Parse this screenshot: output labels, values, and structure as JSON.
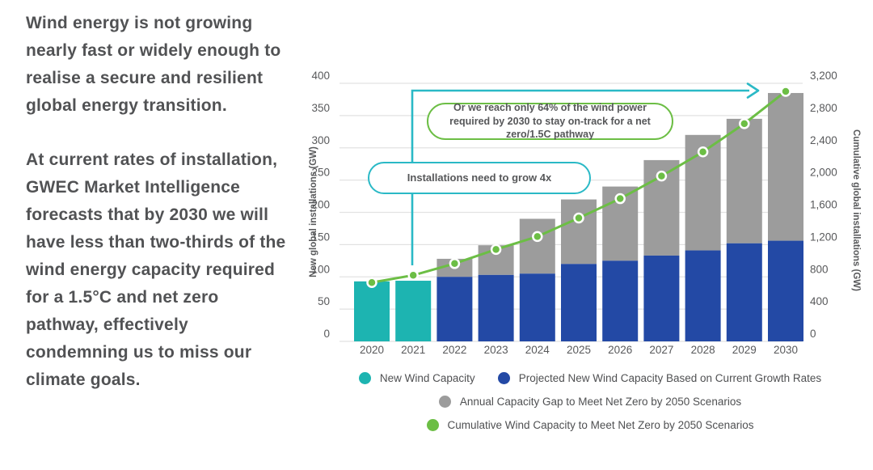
{
  "left_panel": {
    "paragraph1": "Wind energy is not growing nearly fast or widely enough to realise a secure and resilient global energy transition.",
    "paragraph2": "At current rates of installation, GWEC Market Intelligence forecasts that by 2030 we will have less than two-thirds of the wind energy capacity required for a 1.5°C and net zero pathway, effectively condemning us to miss our climate goals."
  },
  "chart": {
    "callouts": {
      "grow4x": "Installations need to grow 4x",
      "reach64": "Or we reach only 64% of the wind power required by 2030 to stay on-track for a net zero/1.5C pathway"
    },
    "legend": [
      {
        "label": "New Wind Capacity",
        "color": "#1db4b1"
      },
      {
        "label": "Projected New Wind Capacity Based on Current Growth Rates",
        "color": "#2349a5"
      },
      {
        "label": "Annual Capacity Gap to Meet Net Zero by 2050 Scenarios",
        "color": "#9c9c9c"
      },
      {
        "label": "Cumulative Wind Capacity to Meet Net Zero by 2050 Scenarios",
        "color": "#6cbe45"
      }
    ],
    "colors": {
      "teal_bar": "#1db4b1",
      "blue_bar": "#2349a5",
      "gray_bar": "#9c9c9c",
      "green_line": "#6cbe45",
      "teal_arrow": "#2ab9c6",
      "gridline": "#e2e2e2",
      "axis_text": "#58595b"
    }
  },
  "chart_data": {
    "type": "bar+line",
    "categories": [
      "2020",
      "2021",
      "2022",
      "2023",
      "2024",
      "2025",
      "2026",
      "2027",
      "2028",
      "2029",
      "2030"
    ],
    "series": [
      {
        "name": "New Wind Capacity",
        "type": "bar",
        "axis": "left",
        "color": "#1db4b1",
        "values": [
          93,
          94,
          null,
          null,
          null,
          null,
          null,
          null,
          null,
          null,
          null
        ]
      },
      {
        "name": "Projected New Wind Capacity Based on Current Growth Rates",
        "type": "bar",
        "axis": "left",
        "color": "#2349a5",
        "values": [
          null,
          null,
          100,
          103,
          105,
          120,
          125,
          133,
          141,
          152,
          156
        ]
      },
      {
        "name": "Annual Capacity Gap to Meet Net Zero by 2050 Scenarios",
        "type": "bar",
        "axis": "left",
        "stacked_on": "Projected New Wind Capacity Based on Current Growth Rates",
        "color": "#9c9c9c",
        "values": [
          null,
          null,
          28,
          46,
          85,
          100,
          115,
          148,
          179,
          193,
          229
        ]
      },
      {
        "name": "Cumulative Wind Capacity to Meet Net Zero by 2050 Scenarios",
        "type": "line",
        "axis": "right",
        "color": "#6cbe45",
        "values": [
          730,
          820,
          965,
          1140,
          1300,
          1530,
          1770,
          2050,
          2350,
          2700,
          3100
        ]
      }
    ],
    "left_axis": {
      "label": "New global installations (GW)",
      "min": 0,
      "max": 400,
      "step": 50
    },
    "right_axis": {
      "label": "Cumulative global installations (GW)",
      "min": 0,
      "max": 3200,
      "step": 400
    },
    "grid": true,
    "legend_position": "bottom"
  }
}
